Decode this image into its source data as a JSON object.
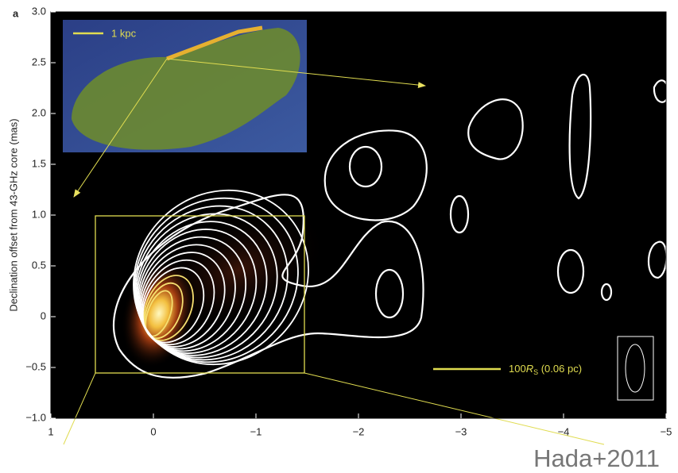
{
  "chart_data": {
    "type": "contour-image",
    "panel_label": "a",
    "y_label": "Declination offset from 43-GHz core (mas)",
    "xlim": [
      1,
      -5
    ],
    "xticks": [
      1,
      0,
      {
        "value": -1,
        "label": "−1"
      },
      {
        "value": -2,
        "label": "−2"
      },
      {
        "value": -3,
        "label": "−3"
      },
      {
        "value": -4,
        "label": "−4"
      },
      {
        "value": -5,
        "label": "−5"
      }
    ],
    "ylim": [
      -1,
      3
    ],
    "yticks": [
      {
        "value": 3,
        "label": "3.0"
      },
      {
        "value": 2.5,
        "label": "2.5"
      },
      {
        "value": 2,
        "label": "2.0"
      },
      {
        "value": 1.5,
        "label": "1.5"
      },
      {
        "value": 1,
        "label": "1.0"
      },
      {
        "value": 0.5,
        "label": "0.5"
      },
      {
        "value": 0,
        "label": "0"
      },
      {
        "value": -0.5,
        "label": "−0.5"
      },
      {
        "value": -1,
        "label": "−1.0"
      }
    ],
    "inset_scale_label": "1 kpc",
    "scale_bar": {
      "prefix": "100",
      "symbol": "R",
      "subscript": "S",
      "suffix": " (0.06 pc)"
    },
    "credit": "Hada+2011"
  }
}
